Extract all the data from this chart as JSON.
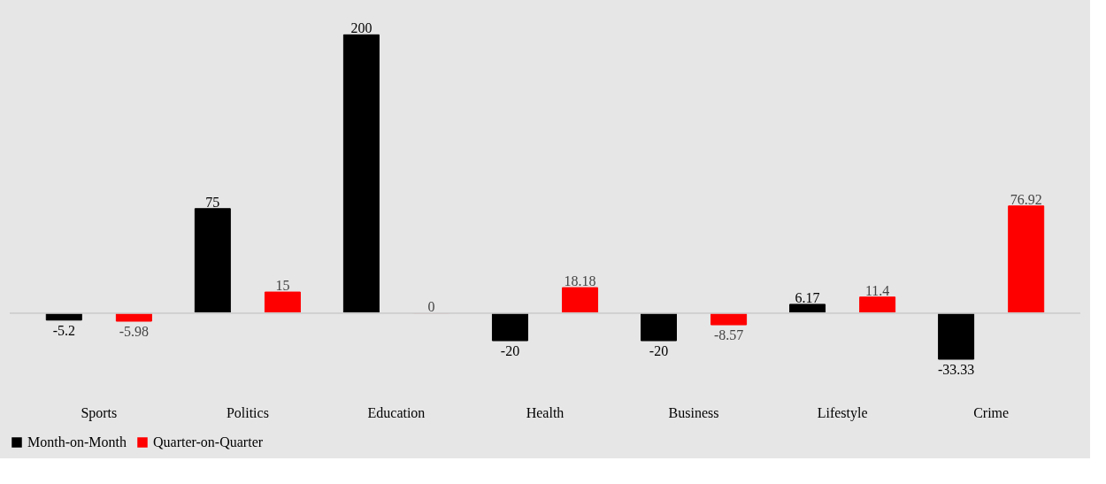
{
  "chart_data": {
    "type": "bar",
    "categories": [
      "Sports",
      "Politics",
      "Education",
      "Health",
      "Business",
      "Lifestyle",
      "Crime"
    ],
    "series": [
      {
        "name": "Month-on-Month",
        "color": "#000000",
        "values": [
          -5.2,
          75,
          200,
          -20,
          -20,
          6.17,
          -33.33
        ]
      },
      {
        "name": "Quarter-on-Quarter",
        "color": "#ff0000",
        "values": [
          -5.98,
          15,
          0,
          18.18,
          -8.57,
          11.4,
          76.92
        ]
      }
    ],
    "data_labels": true,
    "legend": "bottom",
    "grid": false
  }
}
